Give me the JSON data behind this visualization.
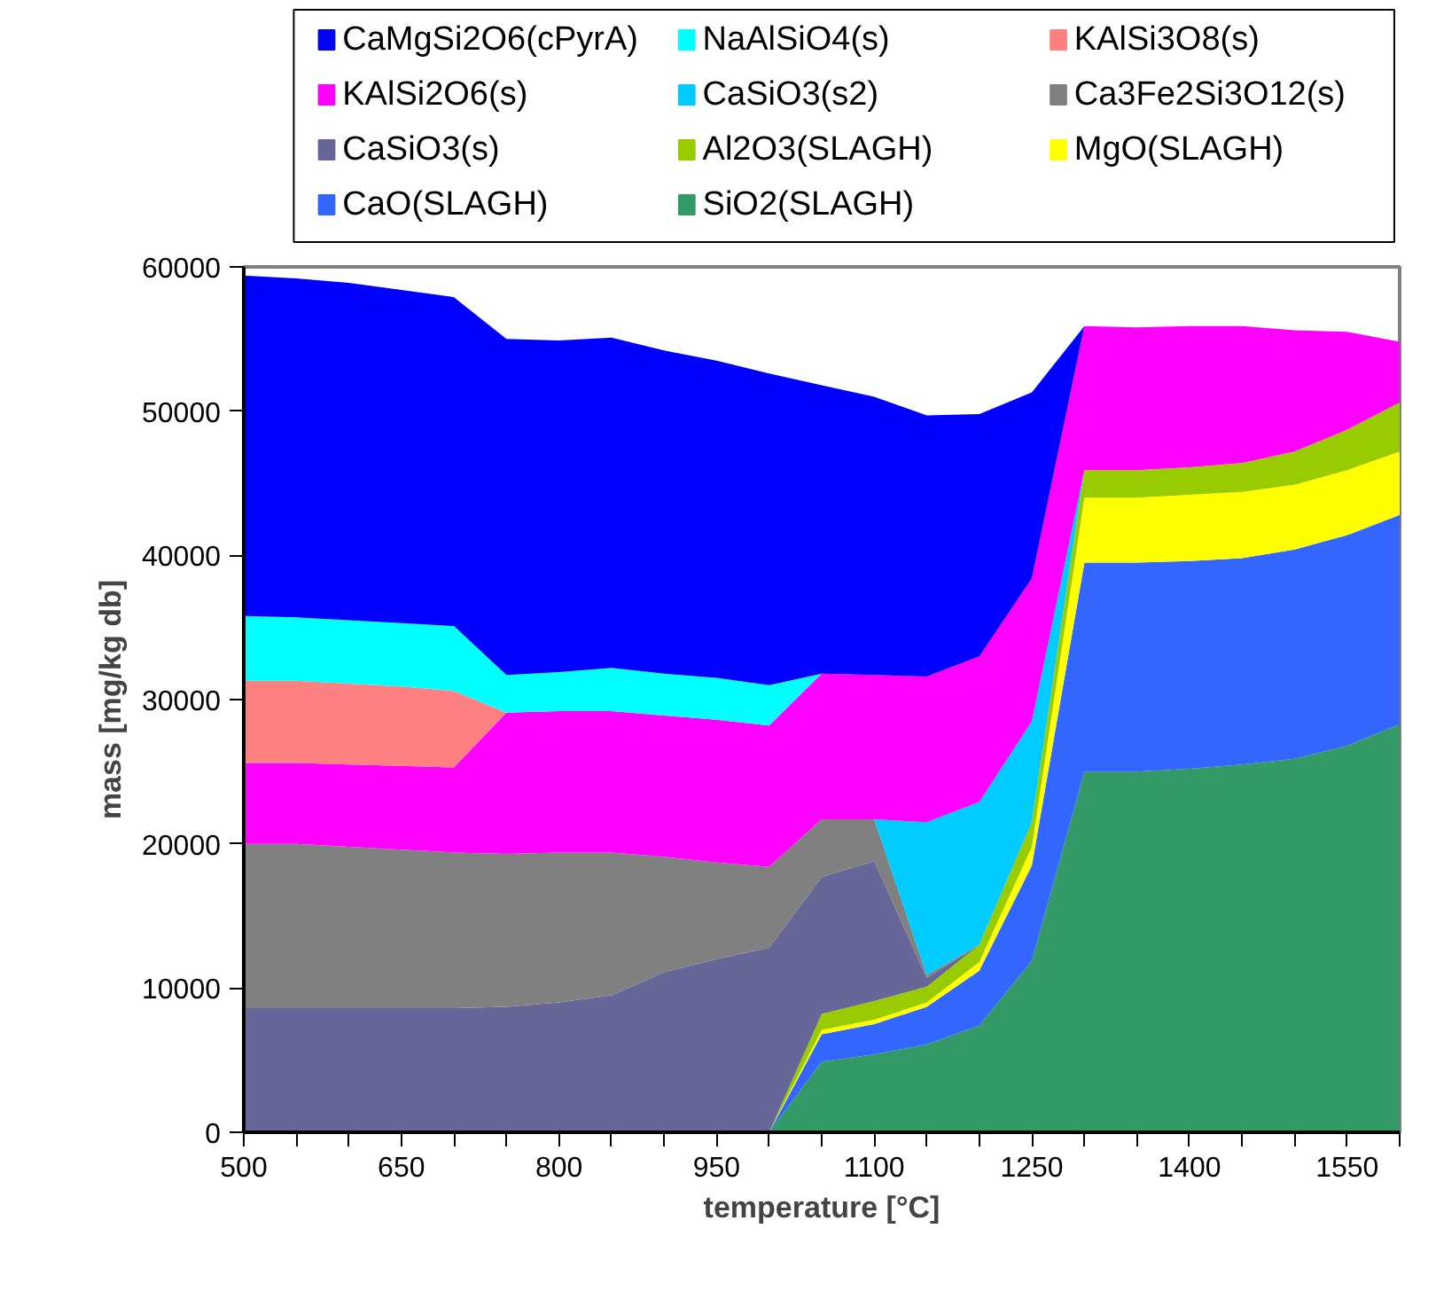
{
  "chart_data": {
    "type": "area",
    "stacked": true,
    "xlabel": "temperature [°C]",
    "ylabel": "mass [mg/kg db]",
    "x": [
      500,
      550,
      600,
      650,
      700,
      750,
      800,
      850,
      900,
      950,
      1000,
      1050,
      1100,
      1150,
      1200,
      1250,
      1300,
      1350,
      1400,
      1450,
      1500,
      1550,
      1600
    ],
    "xlim": [
      500,
      1600
    ],
    "xticks": [
      500,
      {
        "value": 550,
        "label": null
      },
      {
        "value": 600,
        "label": null
      },
      650,
      {
        "value": 700,
        "label": null
      },
      {
        "value": 750,
        "label": null
      },
      800,
      {
        "value": 850,
        "label": null
      },
      {
        "value": 900,
        "label": null
      },
      950,
      {
        "value": 1000,
        "label": null
      },
      {
        "value": 1050,
        "label": null
      },
      1100,
      {
        "value": 1150,
        "label": null
      },
      {
        "value": 1200,
        "label": null
      },
      1250,
      {
        "value": 1300,
        "label": null
      },
      {
        "value": 1350,
        "label": null
      },
      1400,
      {
        "value": 1450,
        "label": null
      },
      {
        "value": 1500,
        "label": null
      },
      1550,
      {
        "value": 1600,
        "label": null
      }
    ],
    "ylim": [
      0,
      60000
    ],
    "yticks": [
      0,
      10000,
      20000,
      30000,
      40000,
      50000,
      60000
    ],
    "grid": false,
    "legend": "top",
    "series": [
      {
        "name": "SiO2(SLAGH)",
        "color": "#339966",
        "values": [
          null,
          null,
          null,
          null,
          null,
          null,
          null,
          null,
          null,
          null,
          0,
          4900,
          5400,
          6100,
          7400,
          11900,
          25000,
          25000,
          25200,
          25500,
          25900,
          26800,
          28300
        ]
      },
      {
        "name": "CaO(SLAGH)",
        "color": "#3366ff",
        "values": [
          null,
          null,
          null,
          null,
          null,
          null,
          null,
          null,
          null,
          null,
          0,
          1900,
          2100,
          2600,
          3800,
          6600,
          14500,
          14500,
          14400,
          14300,
          14500,
          14600,
          14500
        ]
      },
      {
        "name": "MgO(SLAGH)",
        "color": "#ffff00",
        "values": [
          null,
          null,
          null,
          null,
          null,
          null,
          null,
          null,
          null,
          null,
          0,
          300,
          300,
          300,
          600,
          1300,
          4500,
          4500,
          4600,
          4600,
          4500,
          4500,
          4400
        ]
      },
      {
        "name": "Al2O3(SLAGH)",
        "color": "#99cc00",
        "values": [
          null,
          null,
          null,
          null,
          null,
          null,
          null,
          null,
          null,
          null,
          0,
          1100,
          1300,
          1100,
          1200,
          1700,
          1900,
          1900,
          1900,
          2000,
          2300,
          2800,
          3400
        ]
      },
      {
        "name": "CaSiO3(s)",
        "color": "#666699",
        "values": [
          8600,
          8600,
          8600,
          8600,
          8600,
          8700,
          9000,
          9500,
          11100,
          12000,
          12800,
          9500,
          9700,
          600,
          0,
          null,
          null,
          null,
          null,
          null,
          null,
          null,
          null
        ]
      },
      {
        "name": "Ca3Fe2Si3O12(s)",
        "color": "#808080",
        "values": [
          11400,
          11400,
          11200,
          11000,
          10800,
          10600,
          10400,
          9900,
          8000,
          6700,
          5600,
          4000,
          2900,
          200,
          0,
          null,
          null,
          null,
          null,
          null,
          null,
          null,
          null
        ]
      },
      {
        "name": "CaSiO3(s2)",
        "color": "#00ccff",
        "values": [
          null,
          null,
          null,
          null,
          null,
          null,
          null,
          null,
          null,
          null,
          null,
          null,
          0,
          10600,
          9900,
          7000,
          0,
          null,
          null,
          null,
          null,
          null,
          null
        ]
      },
      {
        "name": "KAlSi2O6(s)",
        "color": "#ff00ff",
        "values": [
          5600,
          5600,
          5700,
          5800,
          5900,
          9800,
          9800,
          9800,
          9800,
          9900,
          9800,
          10100,
          10000,
          10100,
          10100,
          9900,
          10000,
          9900,
          9800,
          9500,
          8400,
          6800,
          4200
        ]
      },
      {
        "name": "KAlSi3O8(s)",
        "color": "#ff8080",
        "values": [
          5700,
          5700,
          5600,
          5500,
          5300,
          0,
          null,
          null,
          null,
          null,
          null,
          null,
          null,
          null,
          null,
          null,
          null,
          null,
          null,
          null,
          null,
          null,
          null
        ]
      },
      {
        "name": "NaAlSiO4(s)",
        "color": "#00ffff",
        "values": [
          4500,
          4400,
          4400,
          4400,
          4500,
          2600,
          2700,
          3000,
          2900,
          2900,
          2800,
          0,
          null,
          null,
          null,
          null,
          null,
          null,
          null,
          null,
          null,
          null,
          null
        ]
      },
      {
        "name": "CaMgSi2O6(cPyrA)",
        "color": "#0000ff",
        "values": [
          23600,
          23500,
          23400,
          23100,
          22800,
          23300,
          23000,
          22900,
          22400,
          22000,
          21600,
          20000,
          19300,
          18100,
          16800,
          12900,
          0,
          null,
          null,
          null,
          null,
          null,
          null
        ]
      }
    ]
  }
}
